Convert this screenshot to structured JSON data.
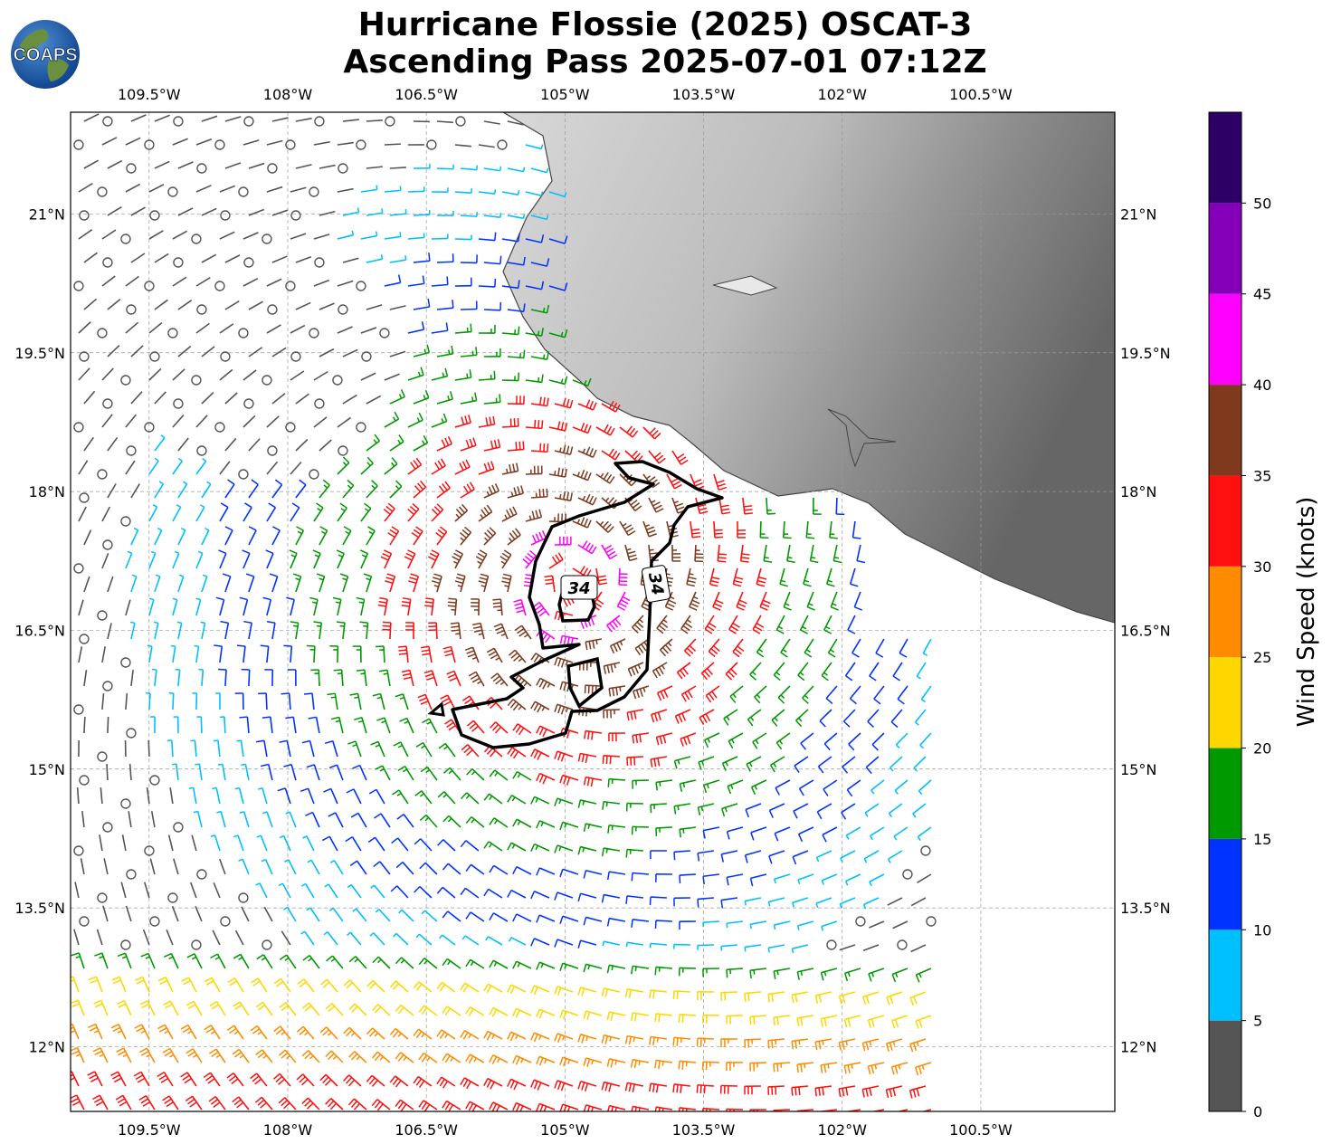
{
  "title_line1": "Hurricane Flossie (2025) OSCAT-3",
  "title_line2": "Ascending Pass 2025-07-01 07:12Z",
  "logo_text": "COAPS",
  "map": {
    "lon_range": [
      -110.35,
      -99.05
    ],
    "lat_range": [
      11.3,
      22.1
    ],
    "lon_ticks": [
      "109.5°W",
      "108°W",
      "106.5°W",
      "105°W",
      "103.5°W",
      "102°W",
      "100.5°W"
    ],
    "lon_tick_values": [
      -109.5,
      -108,
      -106.5,
      -105,
      -103.5,
      -102,
      -100.5
    ],
    "lat_ticks": [
      "21°N",
      "19.5°N",
      "18°N",
      "16.5°N",
      "15°N",
      "13.5°N",
      "12°N"
    ],
    "lat_tick_values": [
      21,
      19.5,
      18,
      16.5,
      15,
      13.5,
      12
    ],
    "grid": true,
    "storm_center": {
      "lon": -104.95,
      "lat": 17.0
    },
    "contour_label": "34",
    "contour_label_2": "34",
    "land_shading": "grayscale terrain"
  },
  "colorbar": {
    "label": "Wind Speed (knots)",
    "ticks": [
      "0",
      "5",
      "10",
      "15",
      "20",
      "25",
      "30",
      "35",
      "40",
      "45",
      "50"
    ],
    "bins": [
      {
        "min": 0,
        "max": 5,
        "color": "#555555"
      },
      {
        "min": 5,
        "max": 10,
        "color": "#00bfff"
      },
      {
        "min": 10,
        "max": 15,
        "color": "#0033ff"
      },
      {
        "min": 15,
        "max": 20,
        "color": "#009900"
      },
      {
        "min": 20,
        "max": 25,
        "color": "#ffd700"
      },
      {
        "min": 25,
        "max": 30,
        "color": "#ff8c00"
      },
      {
        "min": 30,
        "max": 35,
        "color": "#ff1010"
      },
      {
        "min": 35,
        "max": 40,
        "color": "#7f3a1e"
      },
      {
        "min": 40,
        "max": 45,
        "color": "#ff00ff"
      },
      {
        "min": 45,
        "max": 50,
        "color": "#8400b8"
      },
      {
        "min": 50,
        "max": 55,
        "color": "#2c0064"
      }
    ]
  }
}
